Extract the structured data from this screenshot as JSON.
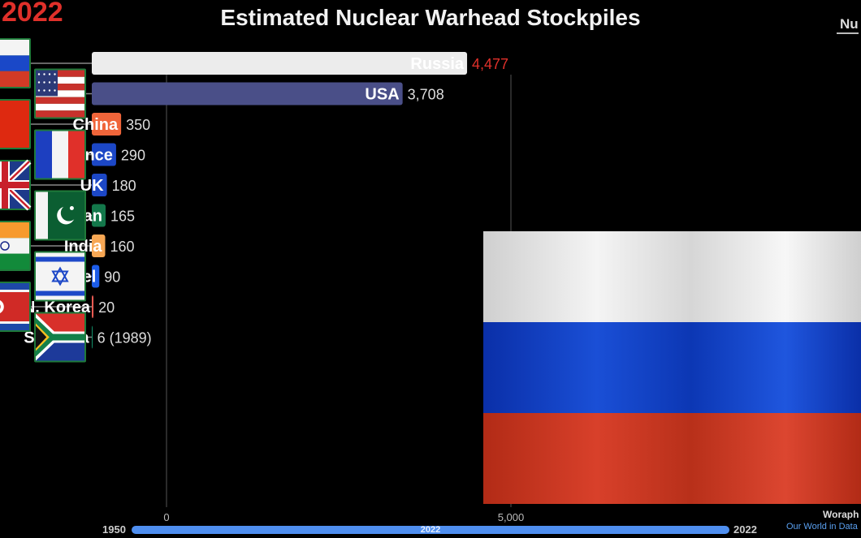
{
  "header": {
    "year": "2022",
    "title": "Estimated Nuclear Warhead Stockpiles",
    "top_right": "Nu"
  },
  "timeline": {
    "start": "1950",
    "end": "2022",
    "current": "2022"
  },
  "credits": {
    "line1": "Woraph",
    "line2": "Our World in Data"
  },
  "chart_data": {
    "type": "bar",
    "orientation": "horizontal",
    "title": "Estimated Nuclear Warhead Stockpiles",
    "xlim": [
      0,
      5700
    ],
    "x_ticks": [
      "0",
      "5,000"
    ],
    "x_tick_values": [
      0,
      5000
    ],
    "gridlines": true,
    "categories": [
      "Russia",
      "USA",
      "China",
      "France",
      "UK",
      "Pakistan",
      "India",
      "Israel",
      "N. Korea",
      "S. Africa"
    ],
    "values": [
      4477,
      3708,
      350,
      290,
      180,
      165,
      160,
      90,
      20,
      6
    ],
    "value_labels": [
      "4,477",
      "3,708",
      "350",
      "290",
      "180",
      "165",
      "160",
      "90",
      "20",
      "6 (1989)"
    ],
    "colors": [
      "#ececec",
      "#4a4f88",
      "#f0653a",
      "#1c47c6",
      "#1c47c6",
      "#13774a",
      "#f7a754",
      "#1c5ce8",
      "#e85a52",
      "#13906a"
    ],
    "label_colors": [
      "#ffffff",
      "#ffffff",
      "#ffffff",
      "#ffffff",
      "#ffffff",
      "#ffffff",
      "#ffffff",
      "#ffffff",
      "#ffffff",
      "#ffffff"
    ],
    "value_colors": [
      "#e0302a",
      "#dddddd",
      "#dddddd",
      "#dddddd",
      "#dddddd",
      "#dddddd",
      "#dddddd",
      "#dddddd",
      "#dddddd",
      "#dddddd"
    ],
    "flags": [
      "flag-russia-icon",
      "flag-usa-icon",
      "flag-china-icon",
      "flag-france-icon",
      "flag-uk-icon",
      "flag-pakistan-icon",
      "flag-india-icon",
      "flag-israel-icon",
      "flag-north-korea-icon",
      "flag-south-africa-icon"
    ]
  }
}
